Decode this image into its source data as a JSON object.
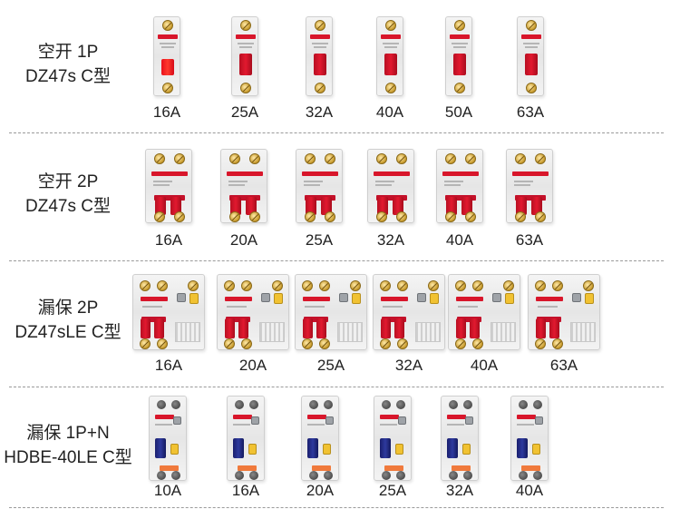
{
  "rows": [
    {
      "label_line1": "空开 1P",
      "label_line2": "DZ47s C型",
      "type": "1p",
      "items": [
        "16A",
        "25A",
        "32A",
        "40A",
        "50A",
        "63A"
      ]
    },
    {
      "label_line1": "空开 2P",
      "label_line2": "DZ47s C型",
      "type": "2p",
      "items": [
        "16A",
        "20A",
        "25A",
        "32A",
        "40A",
        "63A"
      ]
    },
    {
      "label_line1": "漏保 2P",
      "label_line2": "DZ47sLE C型",
      "type": "rcbo",
      "items": [
        "16A",
        "20A",
        "25A",
        "32A",
        "40A",
        "63A"
      ]
    },
    {
      "label_line1": "漏保 1P+N",
      "label_line2": "HDBE-40LE C型",
      "type": "hdbe",
      "items": [
        "10A",
        "16A",
        "20A",
        "25A",
        "32A",
        "40A"
      ]
    }
  ],
  "colors": {
    "breaker_red": "#d8162b",
    "rcd_yellow": "#f1c232",
    "lever_blue": "#2e3a9e",
    "divider": "#9a9a9a"
  }
}
